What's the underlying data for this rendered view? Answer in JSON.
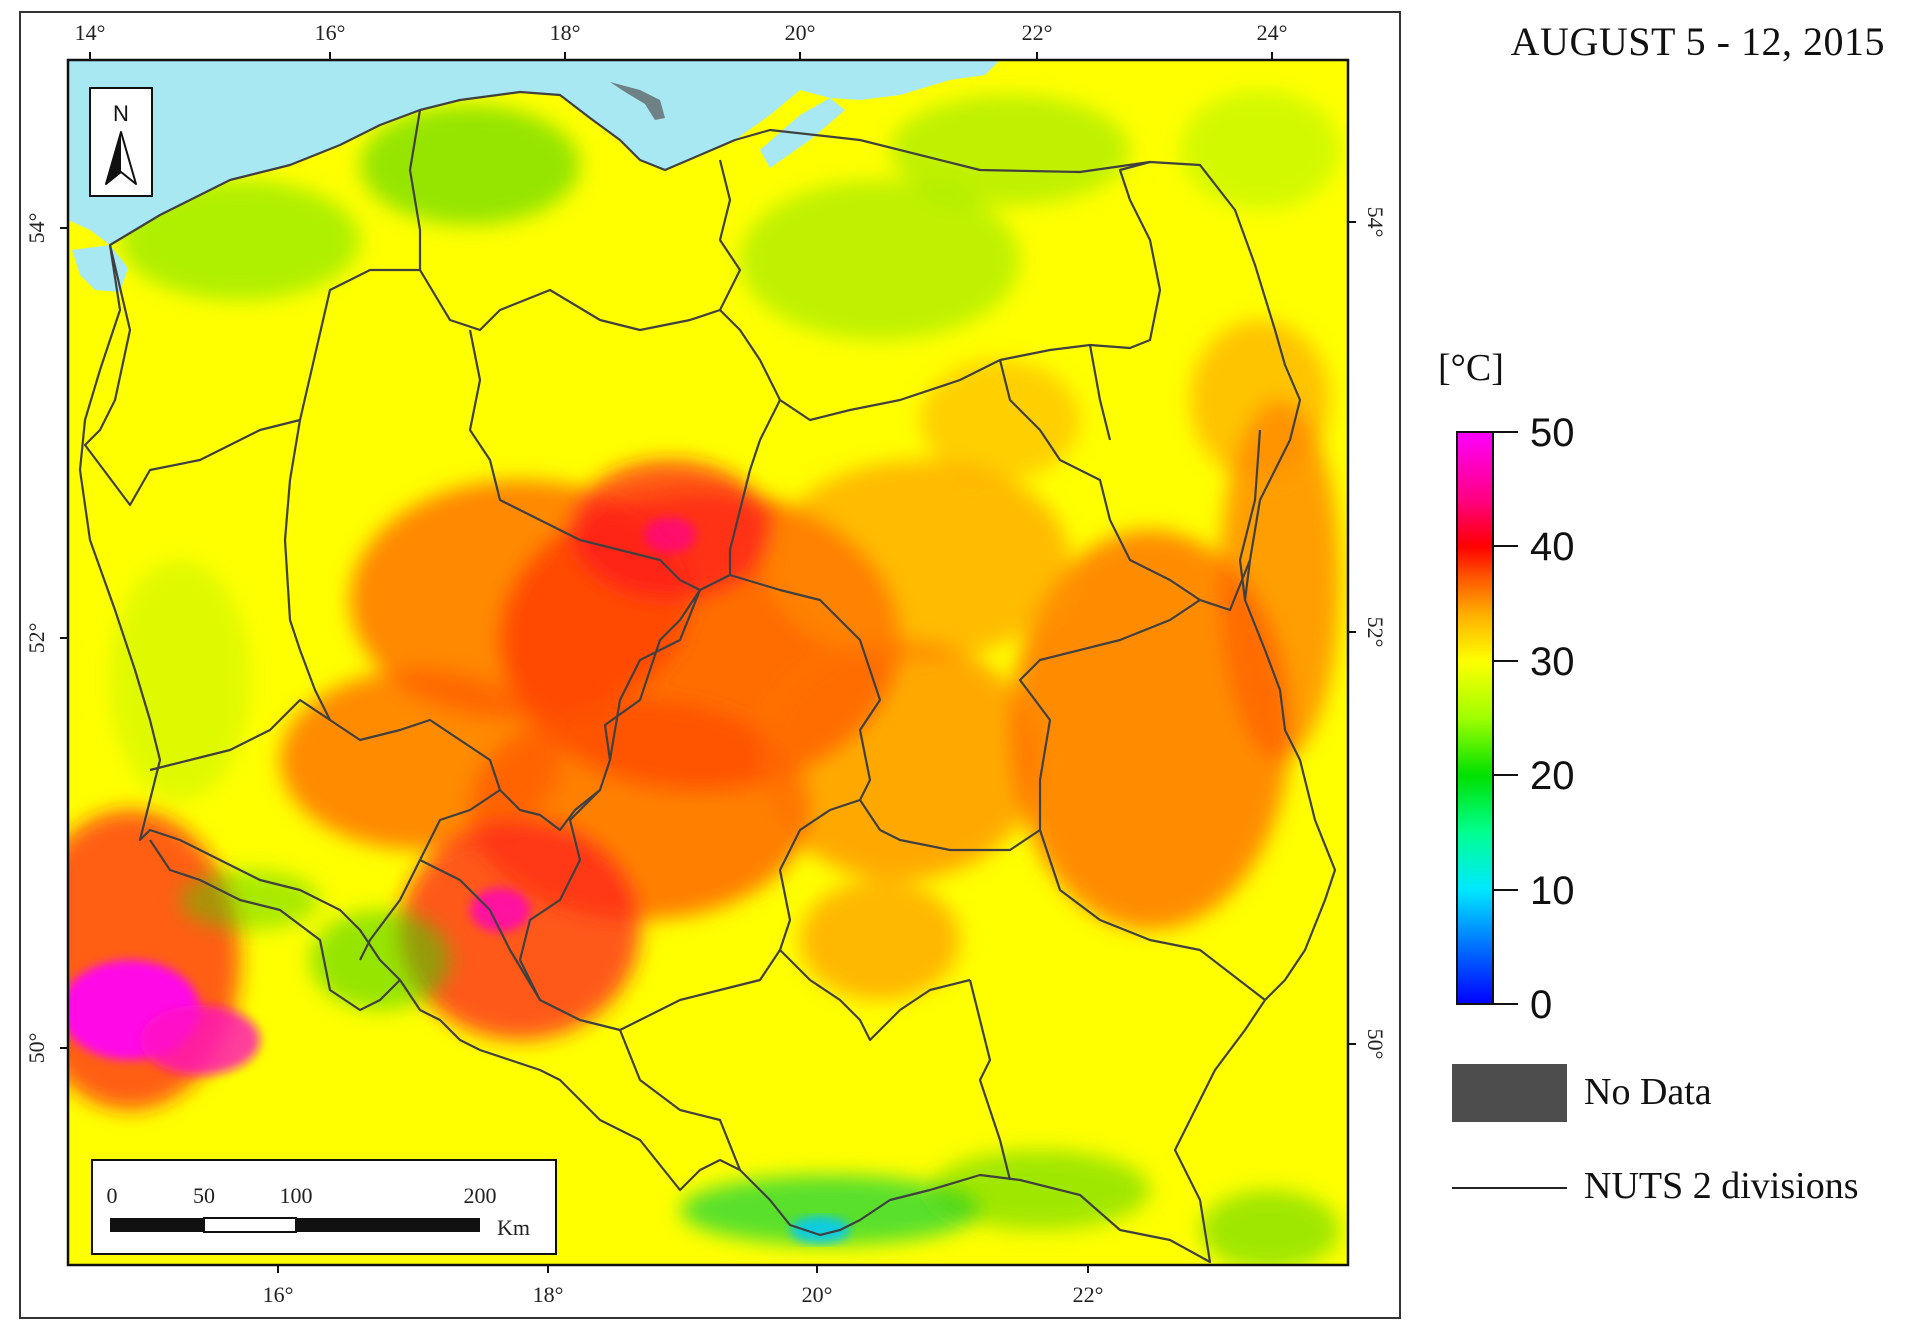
{
  "title": "AUGUST 5 - 12, 2015",
  "map": {
    "north_label": "N",
    "top_lon_ticks": [
      "14°",
      "16°",
      "18°",
      "20°",
      "22°",
      "24°"
    ],
    "bottom_lon_ticks": [
      "16°",
      "18°",
      "20°",
      "22°"
    ],
    "left_lat_ticks": [
      "54°",
      "52°",
      "50°"
    ],
    "right_lat_ticks": [
      "54°",
      "52°",
      "50°"
    ],
    "colors": {
      "sea": "#a8e8f2",
      "base": "#ffff00",
      "border": "#404040"
    }
  },
  "scalebar": {
    "labels": [
      "0",
      "50",
      "100",
      "200"
    ],
    "unit": "Km"
  },
  "legend": {
    "unit": "[°C]",
    "ticks": [
      "50",
      "40",
      "30",
      "20",
      "10",
      "0"
    ],
    "no_data_label": "No Data",
    "no_data_color": "#4d4d4d",
    "line_label": "NUTS 2 divisions"
  }
}
